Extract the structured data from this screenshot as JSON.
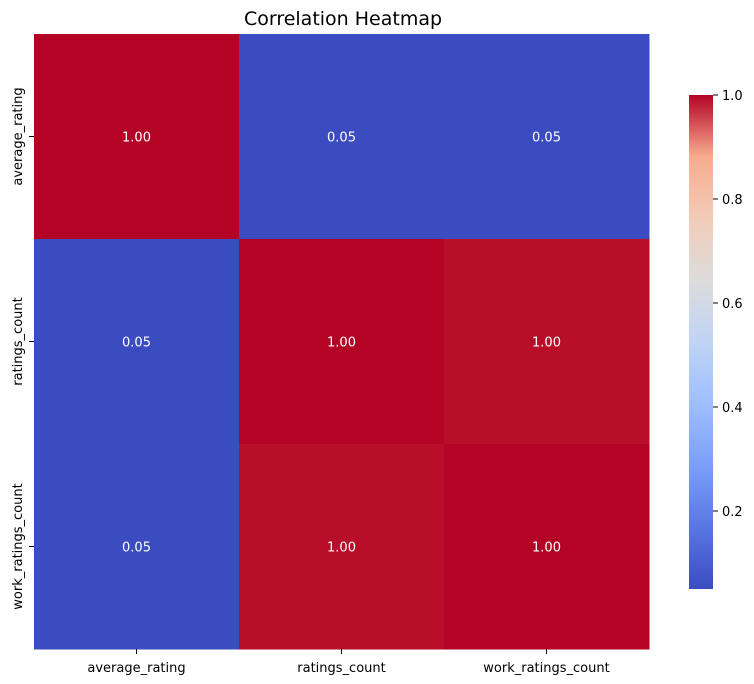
{
  "chart_data": {
    "type": "heatmap",
    "title": "Correlation Heatmap",
    "xlabel": "",
    "ylabel": "",
    "x_categories": [
      "average_rating",
      "ratings_count",
      "work_ratings_count"
    ],
    "y_categories": [
      "average_rating",
      "ratings_count",
      "work_ratings_count"
    ],
    "values": [
      [
        1.0,
        0.05,
        0.05
      ],
      [
        0.05,
        1.0,
        0.995
      ],
      [
        0.05,
        0.995,
        1.0
      ]
    ],
    "value_labels": [
      [
        "1.00",
        "0.05",
        "0.05"
      ],
      [
        "0.05",
        "1.00",
        "1.00"
      ],
      [
        "0.05",
        "1.00",
        "1.00"
      ]
    ],
    "colormap": "coolwarm",
    "colorbar": {
      "range": [
        0.05,
        1.0
      ],
      "ticks": [
        0.2,
        0.4,
        0.6,
        0.8,
        1.0
      ],
      "tick_labels": [
        "0.2",
        "0.4",
        "0.6",
        "0.8",
        "1.0"
      ]
    },
    "annotation_color": "#ffffff"
  }
}
